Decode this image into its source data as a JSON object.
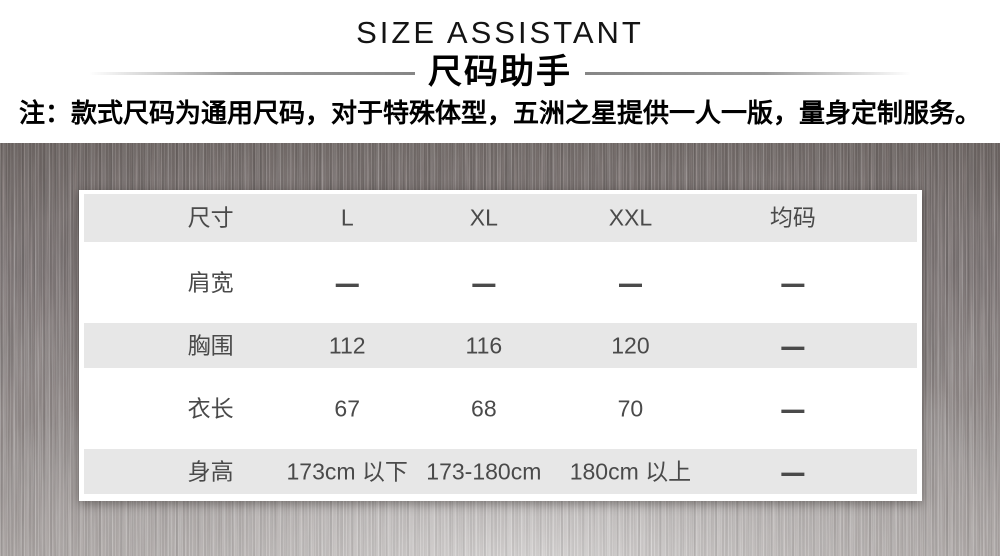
{
  "banner": {
    "title_en": "SIZE ASSISTANT",
    "title_cn": "尺码助手",
    "note": "注：款式尺码为通用尺码，对于特殊体型，五洲之星提供一人一版，量身定制服务。"
  },
  "chart_data": {
    "type": "table",
    "title": "SIZE ASSISTANT 尺码助手",
    "columns": [
      "尺寸",
      "L",
      "XL",
      "XXL",
      "均码"
    ],
    "rows": [
      {
        "label": "肩宽",
        "values": [
          "—",
          "—",
          "—",
          "—"
        ]
      },
      {
        "label": "胸围",
        "values": [
          "112",
          "116",
          "120",
          "—"
        ]
      },
      {
        "label": "衣长",
        "values": [
          "67",
          "68",
          "70",
          "—"
        ]
      },
      {
        "label": "身高",
        "values": [
          "173cm 以下",
          "173-180cm",
          "180cm 以上",
          "—"
        ]
      }
    ]
  },
  "colors": {
    "stripe": "#e7e7e7",
    "card": "#ffffff",
    "table_text": "#4a4a4a",
    "title_text": "#141414",
    "metal_dark": "#6e6765",
    "metal_light": "#cfc9c5"
  }
}
